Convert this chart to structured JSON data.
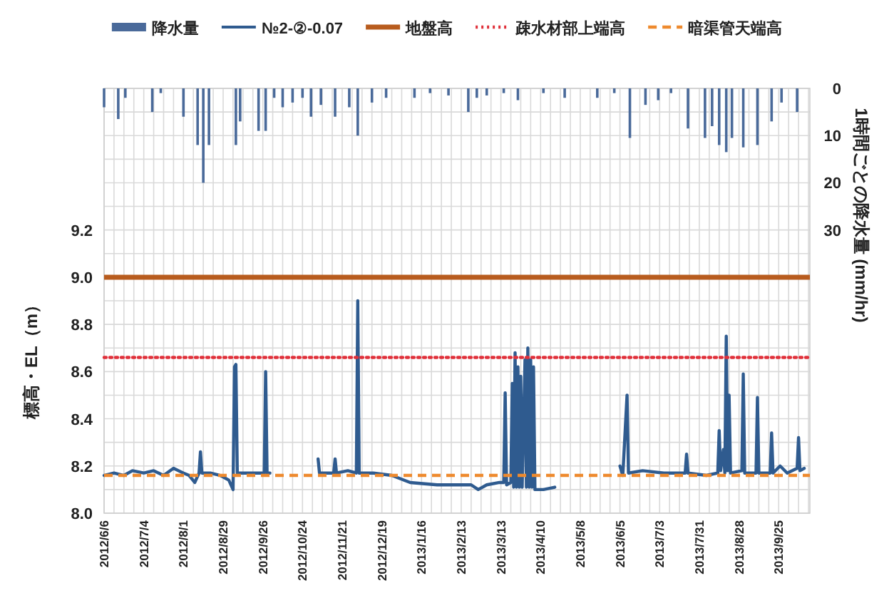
{
  "chart_data": {
    "type": "line",
    "ylabel": "標高・EL（m）",
    "y2label": "1時間ごとの降水量 (mm/hr)",
    "legend": "top",
    "grid": true,
    "marker": "none",
    "xlim": [
      "2012-06-06",
      "2013-10-17"
    ],
    "xticks": [
      {
        "value": "2012-06-06",
        "label": "2012/6/6"
      },
      {
        "value": "2012-06-13",
        "label": null
      },
      {
        "value": "2012-06-20",
        "label": null
      },
      {
        "value": "2012-06-27",
        "label": null
      },
      {
        "value": "2012-07-04",
        "label": "2012/7/4"
      },
      {
        "value": "2012-07-11",
        "label": null
      },
      {
        "value": "2012-07-18",
        "label": null
      },
      {
        "value": "2012-07-25",
        "label": null
      },
      {
        "value": "2012-08-01",
        "label": "2012/8/1"
      },
      {
        "value": "2012-08-08",
        "label": null
      },
      {
        "value": "2012-08-15",
        "label": null
      },
      {
        "value": "2012-08-22",
        "label": null
      },
      {
        "value": "2012-08-29",
        "label": "2012/8/29"
      },
      {
        "value": "2012-09-05",
        "label": null
      },
      {
        "value": "2012-09-12",
        "label": null
      },
      {
        "value": "2012-09-19",
        "label": null
      },
      {
        "value": "2012-09-26",
        "label": "2012/9/26"
      },
      {
        "value": "2012-10-03",
        "label": null
      },
      {
        "value": "2012-10-10",
        "label": null
      },
      {
        "value": "2012-10-17",
        "label": null
      },
      {
        "value": "2012-10-24",
        "label": "2012/10/24"
      },
      {
        "value": "2012-10-31",
        "label": null
      },
      {
        "value": "2012-11-07",
        "label": null
      },
      {
        "value": "2012-11-14",
        "label": null
      },
      {
        "value": "2012-11-21",
        "label": "2012/11/21"
      },
      {
        "value": "2012-11-28",
        "label": null
      },
      {
        "value": "2012-12-05",
        "label": null
      },
      {
        "value": "2012-12-12",
        "label": null
      },
      {
        "value": "2012-12-19",
        "label": "2012/12/19"
      },
      {
        "value": "2012-12-26",
        "label": null
      },
      {
        "value": "2013-01-02",
        "label": null
      },
      {
        "value": "2013-01-09",
        "label": null
      },
      {
        "value": "2013-01-16",
        "label": "2013/1/16"
      },
      {
        "value": "2013-01-23",
        "label": null
      },
      {
        "value": "2013-01-30",
        "label": null
      },
      {
        "value": "2013-02-06",
        "label": null
      },
      {
        "value": "2013-02-13",
        "label": "2013/2/13"
      },
      {
        "value": "2013-02-20",
        "label": null
      },
      {
        "value": "2013-02-27",
        "label": null
      },
      {
        "value": "2013-03-06",
        "label": null
      },
      {
        "value": "2013-03-13",
        "label": "2013/3/13"
      },
      {
        "value": "2013-03-20",
        "label": null
      },
      {
        "value": "2013-03-27",
        "label": null
      },
      {
        "value": "2013-04-03",
        "label": null
      },
      {
        "value": "2013-04-10",
        "label": "2013/4/10"
      },
      {
        "value": "2013-04-17",
        "label": null
      },
      {
        "value": "2013-04-24",
        "label": null
      },
      {
        "value": "2013-05-01",
        "label": null
      },
      {
        "value": "2013-05-08",
        "label": "2013/5/8"
      },
      {
        "value": "2013-05-15",
        "label": null
      },
      {
        "value": "2013-05-22",
        "label": null
      },
      {
        "value": "2013-05-29",
        "label": null
      },
      {
        "value": "2013-06-05",
        "label": "2013/6/5"
      },
      {
        "value": "2013-06-12",
        "label": null
      },
      {
        "value": "2013-06-19",
        "label": null
      },
      {
        "value": "2013-06-26",
        "label": null
      },
      {
        "value": "2013-07-03",
        "label": "2013/7/3"
      },
      {
        "value": "2013-07-10",
        "label": null
      },
      {
        "value": "2013-07-17",
        "label": null
      },
      {
        "value": "2013-07-24",
        "label": null
      },
      {
        "value": "2013-07-31",
        "label": "2013/7/31"
      },
      {
        "value": "2013-08-07",
        "label": null
      },
      {
        "value": "2013-08-14",
        "label": null
      },
      {
        "value": "2013-08-21",
        "label": null
      },
      {
        "value": "2013-08-28",
        "label": "2013/8/28"
      },
      {
        "value": "2013-09-04",
        "label": null
      },
      {
        "value": "2013-09-11",
        "label": null
      },
      {
        "value": "2013-09-18",
        "label": null
      },
      {
        "value": "2013-09-25",
        "label": "2013/9/25"
      },
      {
        "value": "2013-10-02",
        "label": null
      },
      {
        "value": "2013-10-09",
        "label": null
      },
      {
        "value": "2013-10-16",
        "label": null
      }
    ],
    "ylim": [
      8,
      9.8
    ],
    "yticks": [
      {
        "value": 8,
        "label": "8.0"
      },
      {
        "value": 8.1,
        "label": null
      },
      8.2,
      {
        "value": 8.3,
        "label": null
      },
      8.4,
      {
        "value": 8.5,
        "label": null
      },
      8.6,
      {
        "value": 8.7,
        "label": null
      },
      8.8,
      {
        "value": 8.9,
        "label": null
      },
      {
        "value": 9,
        "label": "9.0"
      },
      {
        "value": 9.1,
        "label": null
      },
      9.2,
      {
        "value": 9.3,
        "label": null
      },
      {
        "value": 9.4,
        "label": null
      },
      {
        "value": 9.5,
        "label": null
      },
      {
        "value": 9.6,
        "label": null
      },
      {
        "value": 9.7,
        "label": null
      },
      {
        "value": 9.8,
        "label": null
      }
    ],
    "y2lim": [
      90,
      0
    ],
    "y2ticks": [
      0,
      10,
      20,
      30
    ],
    "series": [
      {
        "name": "降水量",
        "type": "bar",
        "axis": "y2",
        "color": "#4a6a9a",
        "x": [
          "2012-06-06",
          "2012-06-16",
          "2012-06-21",
          "2012-07-10",
          "2012-07-16",
          "2012-08-01",
          "2012-08-11",
          "2012-08-15",
          "2012-08-19",
          "2012-09-07",
          "2012-09-10",
          "2012-09-23",
          "2012-09-28",
          "2012-10-04",
          "2012-10-10",
          "2012-10-17",
          "2012-10-24",
          "2012-10-30",
          "2012-11-06",
          "2012-11-16",
          "2012-11-26",
          "2012-12-02",
          "2012-12-12",
          "2012-12-22",
          "2013-01-11",
          "2013-01-22",
          "2013-02-04",
          "2013-02-18",
          "2013-02-24",
          "2013-03-03",
          "2013-03-15",
          "2013-03-25",
          "2013-04-12",
          "2013-04-27",
          "2013-05-20",
          "2013-06-01",
          "2013-06-12",
          "2013-06-23",
          "2013-07-02",
          "2013-07-11",
          "2013-07-23",
          "2013-08-04",
          "2013-08-09",
          "2013-08-14",
          "2013-08-19",
          "2013-08-23",
          "2013-08-31",
          "2013-09-10",
          "2013-09-20",
          "2013-09-27",
          "2013-10-08"
        ],
        "values": [
          4,
          6.5,
          2,
          5,
          1,
          6,
          12,
          20,
          12,
          12,
          7,
          9,
          9,
          2,
          4,
          3,
          2,
          6,
          3.5,
          6,
          4,
          10,
          3,
          2,
          2,
          1,
          1.5,
          5,
          2,
          1.5,
          1,
          2.5,
          1,
          2,
          2,
          1,
          10.5,
          3.5,
          2.5,
          1,
          8.5,
          10.5,
          8,
          12,
          13.5,
          10.5,
          12.5,
          12,
          7,
          3,
          5
        ]
      },
      {
        "name": "№2-②-0.07",
        "color": "#2f5b8f",
        "x": [
          "2012-06-06",
          "2012-06-13",
          "2012-06-20",
          "2012-06-26",
          "2012-07-04",
          "2012-07-11",
          "2012-07-18",
          "2012-07-25",
          "2012-08-01",
          "2012-08-05",
          "2012-08-09",
          "2012-08-12",
          "2012-08-13",
          "2012-08-14",
          "2012-08-20",
          "2012-08-27",
          "2012-09-02",
          "2012-09-05",
          "2012-09-06",
          "2012-09-07",
          "2012-09-08",
          "2012-09-14",
          "2012-09-21",
          "2012-09-27",
          "2012-09-28",
          "2012-09-29",
          "2012-10-01",
          "2012-10-15",
          "2012-11-04",
          "2012-11-05",
          "2012-11-15",
          "2012-11-16",
          "2012-11-17",
          "2012-11-25",
          "2012-12-01",
          "2012-12-02",
          "2012-12-03",
          "2012-12-13",
          "2012-12-26",
          "2013-01-08",
          "2013-01-27",
          "2013-02-20",
          "2013-02-25",
          "2013-03-03",
          "2013-03-12",
          "2013-03-15",
          "2013-03-16",
          "2013-03-17",
          "2013-03-20",
          "2013-03-21",
          "2013-03-22",
          "2013-03-23",
          "2013-03-24",
          "2013-03-25",
          "2013-03-26",
          "2013-03-27",
          "2013-03-28",
          "2013-03-30",
          "2013-03-31",
          "2013-04-01",
          "2013-04-02",
          "2013-04-03",
          "2013-04-04",
          "2013-04-05",
          "2013-04-06",
          "2013-04-12",
          "2013-04-20",
          "2013-05-10",
          "2013-06-05",
          "2013-06-07",
          "2013-06-10",
          "2013-06-11",
          "2013-06-21",
          "2013-07-06",
          "2013-07-21",
          "2013-07-22",
          "2013-07-23",
          "2013-08-05",
          "2013-08-13",
          "2013-08-14",
          "2013-08-15",
          "2013-08-17",
          "2013-08-18",
          "2013-08-19",
          "2013-08-20",
          "2013-08-21",
          "2013-08-22",
          "2013-08-30",
          "2013-08-31",
          "2013-09-01",
          "2013-09-09",
          "2013-09-10",
          "2013-09-11",
          "2013-09-19",
          "2013-09-20",
          "2013-09-21",
          "2013-09-26",
          "2013-10-01",
          "2013-10-08",
          "2013-10-09",
          "2013-10-10",
          "2013-10-13"
        ],
        "values": [
          8.16,
          8.17,
          8.16,
          8.18,
          8.17,
          8.18,
          8.16,
          8.19,
          8.17,
          8.16,
          8.13,
          8.17,
          8.26,
          8.17,
          8.17,
          8.16,
          8.14,
          8.1,
          8.62,
          8.63,
          8.17,
          8.17,
          8.17,
          8.17,
          8.6,
          8.17,
          8.17,
          null,
          8.23,
          8.17,
          8.17,
          8.23,
          8.17,
          8.18,
          8.17,
          8.9,
          8.17,
          8.17,
          8.16,
          8.13,
          8.12,
          8.12,
          8.1,
          8.12,
          8.13,
          8.13,
          8.51,
          8.12,
          8.13,
          8.55,
          8.11,
          8.68,
          8.11,
          8.62,
          8.11,
          8.58,
          8.11,
          8.65,
          8.11,
          8.7,
          8.11,
          8.65,
          8.11,
          8.62,
          8.1,
          8.1,
          8.11,
          null,
          8.2,
          8.16,
          8.5,
          8.17,
          8.18,
          8.17,
          8.17,
          8.25,
          8.17,
          8.16,
          8.17,
          8.35,
          8.18,
          8.27,
          8.17,
          8.75,
          8.18,
          8.5,
          8.17,
          8.18,
          8.59,
          8.17,
          8.17,
          8.49,
          8.17,
          8.17,
          8.34,
          8.17,
          8.2,
          8.17,
          8.19,
          8.32,
          8.18,
          8.19
        ]
      }
    ],
    "ref_lines": [
      {
        "axis": "y",
        "value": 9,
        "label": "地盤高",
        "color": "#b85c1e",
        "line_style": "solid"
      },
      {
        "axis": "y",
        "value": 8.66,
        "label": "疎水材部上端高",
        "color": "#e0303a",
        "line_style": "dotted"
      },
      {
        "axis": "y",
        "value": 8.16,
        "label": "暗渠管天端高",
        "color": "#ee8a2e",
        "line_style": "dashed"
      }
    ]
  }
}
